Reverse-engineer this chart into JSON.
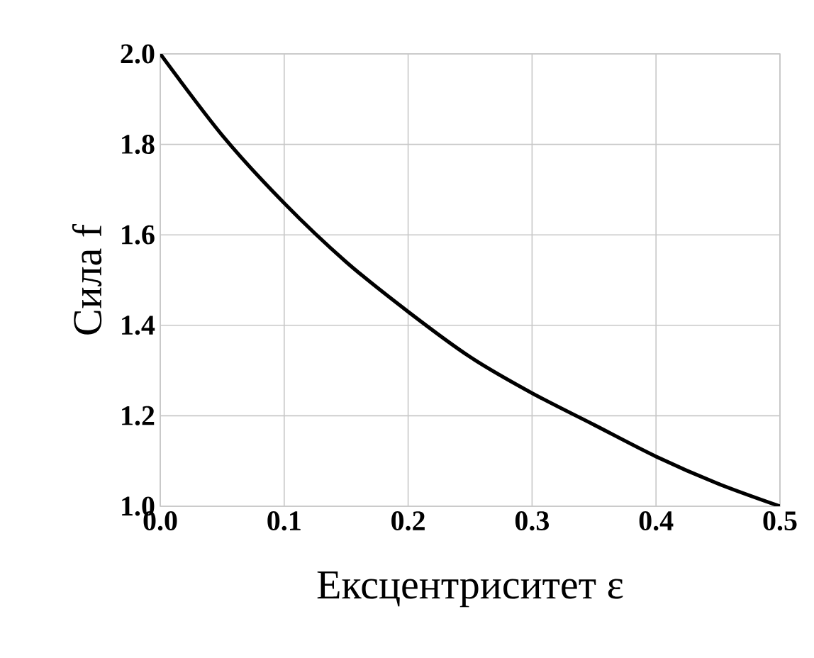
{
  "chart_data": {
    "type": "line",
    "xlabel": "Ексцентриситет ε",
    "ylabel": "Сила f",
    "x": [
      0,
      0.05,
      0.1,
      0.15,
      0.2,
      0.25,
      0.3,
      0.35,
      0.4,
      0.45,
      0.5
    ],
    "series": [
      {
        "color": "#000000",
        "values": [
          2.0,
          1.82,
          1.67,
          1.54,
          1.43,
          1.33,
          1.25,
          1.18,
          1.11,
          1.05,
          1.0
        ]
      }
    ],
    "xlim": [
      0,
      0.5
    ],
    "ylim": [
      1.0,
      2.0
    ],
    "xticks": [
      {
        "value": 0,
        "label": "0.0"
      },
      {
        "value": 0.1,
        "label": "0.1"
      },
      {
        "value": 0.2,
        "label": "0.2"
      },
      {
        "value": 0.3,
        "label": "0.3"
      },
      {
        "value": 0.4,
        "label": "0.4"
      },
      {
        "value": 0.5,
        "label": "0.5"
      }
    ],
    "yticks": [
      {
        "value": 1.0,
        "label": "1.0"
      },
      {
        "value": 1.2,
        "label": "1.2"
      },
      {
        "value": 1.4,
        "label": "1.4"
      },
      {
        "value": 1.6,
        "label": "1.6"
      },
      {
        "value": 1.8,
        "label": "1.8"
      },
      {
        "value": 2.0,
        "label": "2.0"
      }
    ],
    "grid": true
  }
}
